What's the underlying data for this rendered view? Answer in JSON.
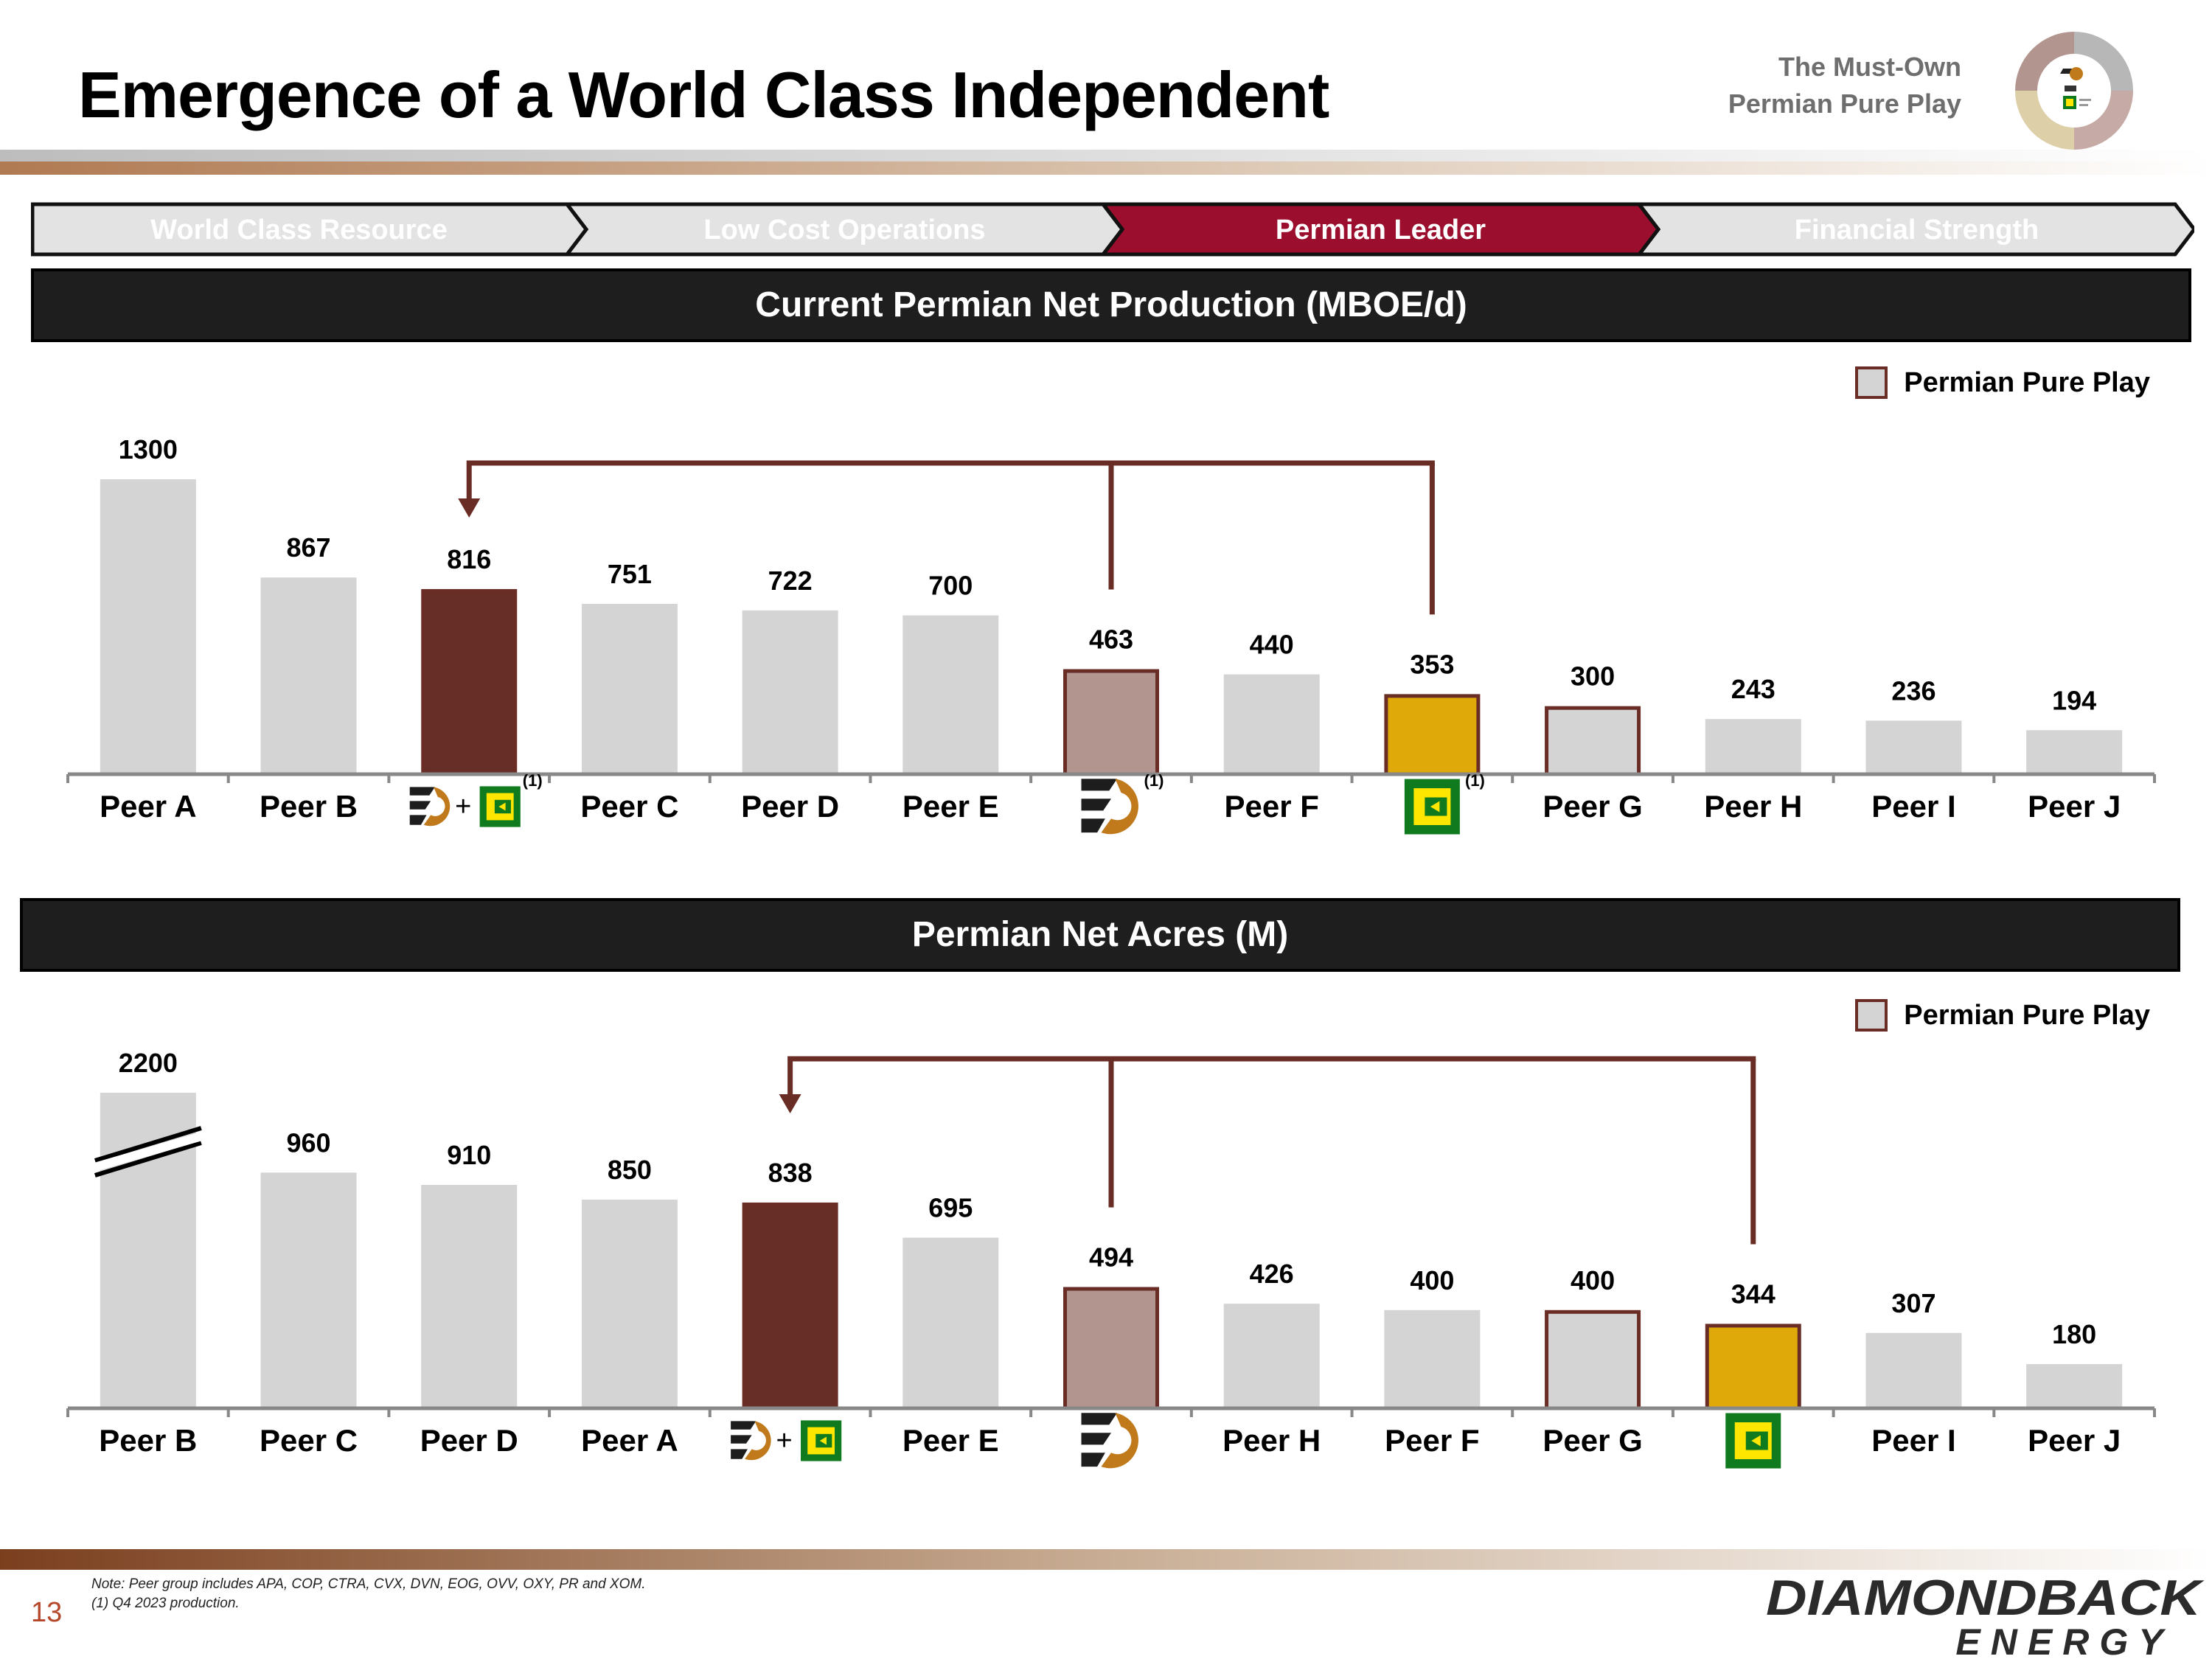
{
  "title": "Emergence of a World Class Independent",
  "tagline": {
    "line1": "The Must-Own",
    "line2": "Permian Pure Play"
  },
  "nav": {
    "steps": [
      {
        "label": "World Class Resource",
        "active": false
      },
      {
        "label": "Low Cost Operations",
        "active": false
      },
      {
        "label": "Permian Leader",
        "active": true
      },
      {
        "label": "Financial Strength",
        "active": false
      }
    ],
    "active_color": "#9b0e2d",
    "inactive_color": "#e3e3e3"
  },
  "legend_label": "Permian Pure Play",
  "footnote_marker": "(1)",
  "colors": {
    "peer": "#d4d4d4",
    "combined": "#662e26",
    "diamondback": "#b39590",
    "endeavor": "#dfa90a",
    "pure_play_border": "#6a2d25",
    "arrow": "#6a2d25",
    "diamondback_logo": "#c07a1c",
    "endeavor_logo": "#0f7a1e",
    "endeavor_logo_inner": "#ffe600"
  },
  "chart_data": [
    {
      "type": "bar",
      "title": "Current Permian Net Production (MBOE/d)",
      "legend": "Permian Pure Play",
      "ylim": [
        0,
        1300
      ],
      "categories": [
        "Peer A",
        "Peer B",
        "Diamondback + Endeavor",
        "Peer C",
        "Peer D",
        "Peer E",
        "Diamondback",
        "Peer F",
        "Endeavor",
        "Peer G",
        "Peer H",
        "Peer I",
        "Peer J"
      ],
      "values": [
        1300,
        867,
        816,
        751,
        722,
        700,
        463,
        440,
        353,
        300,
        243,
        236,
        194
      ],
      "value_labels": [
        "1300",
        "867",
        "816",
        "751",
        "722",
        "700",
        "463",
        "440",
        "353",
        "300",
        "243",
        "236",
        "194"
      ],
      "kinds": [
        "peer",
        "peer",
        "combined",
        "peer",
        "peer",
        "peer",
        "diamondback",
        "peer",
        "endeavor",
        "peer",
        "peer",
        "peer",
        "peer"
      ],
      "pure_play": [
        false,
        false,
        true,
        false,
        false,
        false,
        true,
        false,
        true,
        true,
        false,
        false,
        false
      ],
      "footnote": [
        false,
        false,
        true,
        false,
        false,
        false,
        true,
        false,
        true,
        false,
        false,
        false,
        false
      ],
      "axis_break": false,
      "combine_arrow": {
        "sources": [
          6,
          8
        ],
        "target": 2
      }
    },
    {
      "type": "bar",
      "title": "Permian Net Acres (M)",
      "legend": "Permian Pure Play",
      "ylim": [
        0,
        1000
      ],
      "categories": [
        "Peer B",
        "Peer C",
        "Peer D",
        "Peer A",
        "Diamondback + Endeavor",
        "Peer E",
        "Diamondback",
        "Peer H",
        "Peer F",
        "Peer G",
        "Endeavor",
        "Peer I",
        "Peer J"
      ],
      "values": [
        2200,
        960,
        910,
        850,
        838,
        695,
        494,
        426,
        400,
        400,
        344,
        307,
        180
      ],
      "value_labels": [
        "2200",
        "960",
        "910",
        "850",
        "838",
        "695",
        "494",
        "426",
        "400",
        "400",
        "344",
        "307",
        "180"
      ],
      "kinds": [
        "peer",
        "peer",
        "peer",
        "peer",
        "combined",
        "peer",
        "diamondback",
        "peer",
        "peer",
        "peer",
        "endeavor",
        "peer",
        "peer"
      ],
      "pure_play": [
        false,
        false,
        false,
        false,
        true,
        false,
        true,
        false,
        false,
        true,
        true,
        false,
        false
      ],
      "footnote": [
        false,
        false,
        false,
        false,
        false,
        false,
        false,
        false,
        false,
        false,
        false,
        false,
        false
      ],
      "axis_break": true,
      "combine_arrow": {
        "sources": [
          6,
          10
        ],
        "target": 4
      }
    }
  ],
  "footer": {
    "page_number": "13",
    "notes": [
      "Note: Peer group includes APA, COP, CTRA, CVX, DVN, EOG, OVV, OXY, PR and XOM.",
      "(1) Q4 2023 production."
    ],
    "logo_line1": "DIAMONDBACK",
    "logo_line2": "ENERGY"
  }
}
